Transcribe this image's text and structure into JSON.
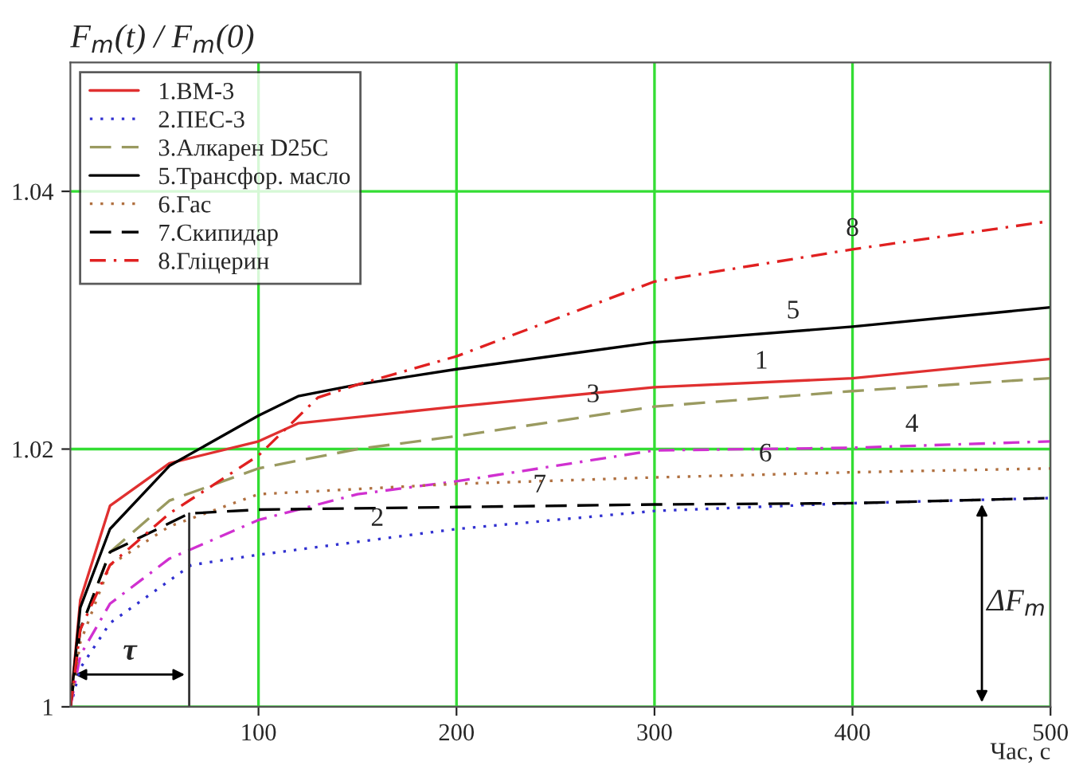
{
  "chart_data": {
    "type": "line",
    "ylabel": "F$_{m}$(t) / F$_{m}$(0)",
    "xlabel": "Час, с",
    "xlim": [
      5,
      500
    ],
    "ylim": [
      1,
      1.05
    ],
    "xticks": [
      100,
      200,
      300,
      400,
      500
    ],
    "yticks": [
      1,
      1.02,
      1.04
    ],
    "grid": true,
    "legend": "top left",
    "series": [
      {
        "name": "1.ВМ-3",
        "color": "#e03030",
        "line_style": "solid",
        "x": [
          5,
          10,
          25,
          55,
          100,
          120,
          200,
          300,
          400,
          500
        ],
        "values": [
          1.0,
          1.0083,
          1.0156,
          1.0189,
          1.0206,
          1.022,
          1.0233,
          1.0248,
          1.0255,
          1.027
        ]
      },
      {
        "name": "2.ПЕС-3",
        "color": "#3030d0",
        "line_style": "dotted",
        "x": [
          5,
          10,
          25,
          66,
          100,
          200,
          300,
          400,
          500
        ],
        "values": [
          1.0,
          1.003,
          1.0065,
          1.011,
          1.0118,
          1.0138,
          1.0152,
          1.0158,
          1.0162
        ]
      },
      {
        "name": "3.Алкарен D25C",
        "color": "#9a9a60",
        "line_style": "dashed",
        "x": [
          5,
          10,
          25,
          55,
          100,
          150,
          200,
          300,
          400,
          500
        ],
        "values": [
          1.0,
          1.006,
          1.012,
          1.016,
          1.0185,
          1.02,
          1.021,
          1.0233,
          1.0245,
          1.0255
        ]
      },
      {
        "color": "#d030d0",
        "line_style": "dashdot",
        "x": [
          5,
          10,
          25,
          55,
          100,
          150,
          200,
          300,
          400,
          500
        ],
        "values": [
          1.0,
          1.004,
          1.008,
          1.0115,
          1.0145,
          1.0165,
          1.0175,
          1.0199,
          1.0201,
          1.0206
        ]
      },
      {
        "name": "5.Трансфор. масло",
        "color": "#000000",
        "line_style": "solid",
        "x": [
          5,
          10,
          25,
          55,
          100,
          120,
          150,
          200,
          300,
          400,
          500
        ],
        "values": [
          1.0,
          1.0077,
          1.0138,
          1.0187,
          1.0226,
          1.0241,
          1.025,
          1.0262,
          1.0283,
          1.0295,
          1.031
        ]
      },
      {
        "name": "6.Гас",
        "color": "#b07040",
        "line_style": "dotted",
        "x": [
          5,
          10,
          25,
          55,
          100,
          200,
          300,
          400,
          500
        ],
        "values": [
          1.0,
          1.005,
          1.011,
          1.014,
          1.0165,
          1.0173,
          1.0178,
          1.0182,
          1.0185
        ]
      },
      {
        "name": "7.Скипидар",
        "color": "#000000",
        "line_style": "dashed",
        "x": [
          5,
          10,
          25,
          65,
          100,
          200,
          300,
          400,
          500
        ],
        "values": [
          1.0,
          1.006,
          1.012,
          1.015,
          1.0153,
          1.0155,
          1.0157,
          1.0158,
          1.0162
        ]
      },
      {
        "name": "8.Гліцерин",
        "color": "#e02020",
        "line_style": "dashdot",
        "x": [
          5,
          10,
          25,
          55,
          100,
          130,
          150,
          200,
          300,
          400,
          500
        ],
        "values": [
          1.0,
          1.006,
          1.011,
          1.015,
          1.0195,
          1.024,
          1.025,
          1.0272,
          1.033,
          1.0355,
          1.0377
        ]
      }
    ],
    "annotations": [
      {
        "text": "1",
        "x": 354,
        "y": 1.0252
      },
      {
        "text": "2",
        "x": 160,
        "y": 1.013
      },
      {
        "text": "3",
        "x": 269,
        "y": 1.0226
      },
      {
        "text": "4",
        "x": 430,
        "y": 1.0203
      },
      {
        "text": "5",
        "x": 370,
        "y": 1.0291
      },
      {
        "text": "6",
        "x": 356,
        "y": 1.018
      },
      {
        "text": "7",
        "x": 242,
        "y": 1.0156
      },
      {
        "text": "8",
        "x": 400,
        "y": 1.0355
      },
      "τ",
      "ΔF$_{m}$"
    ]
  }
}
